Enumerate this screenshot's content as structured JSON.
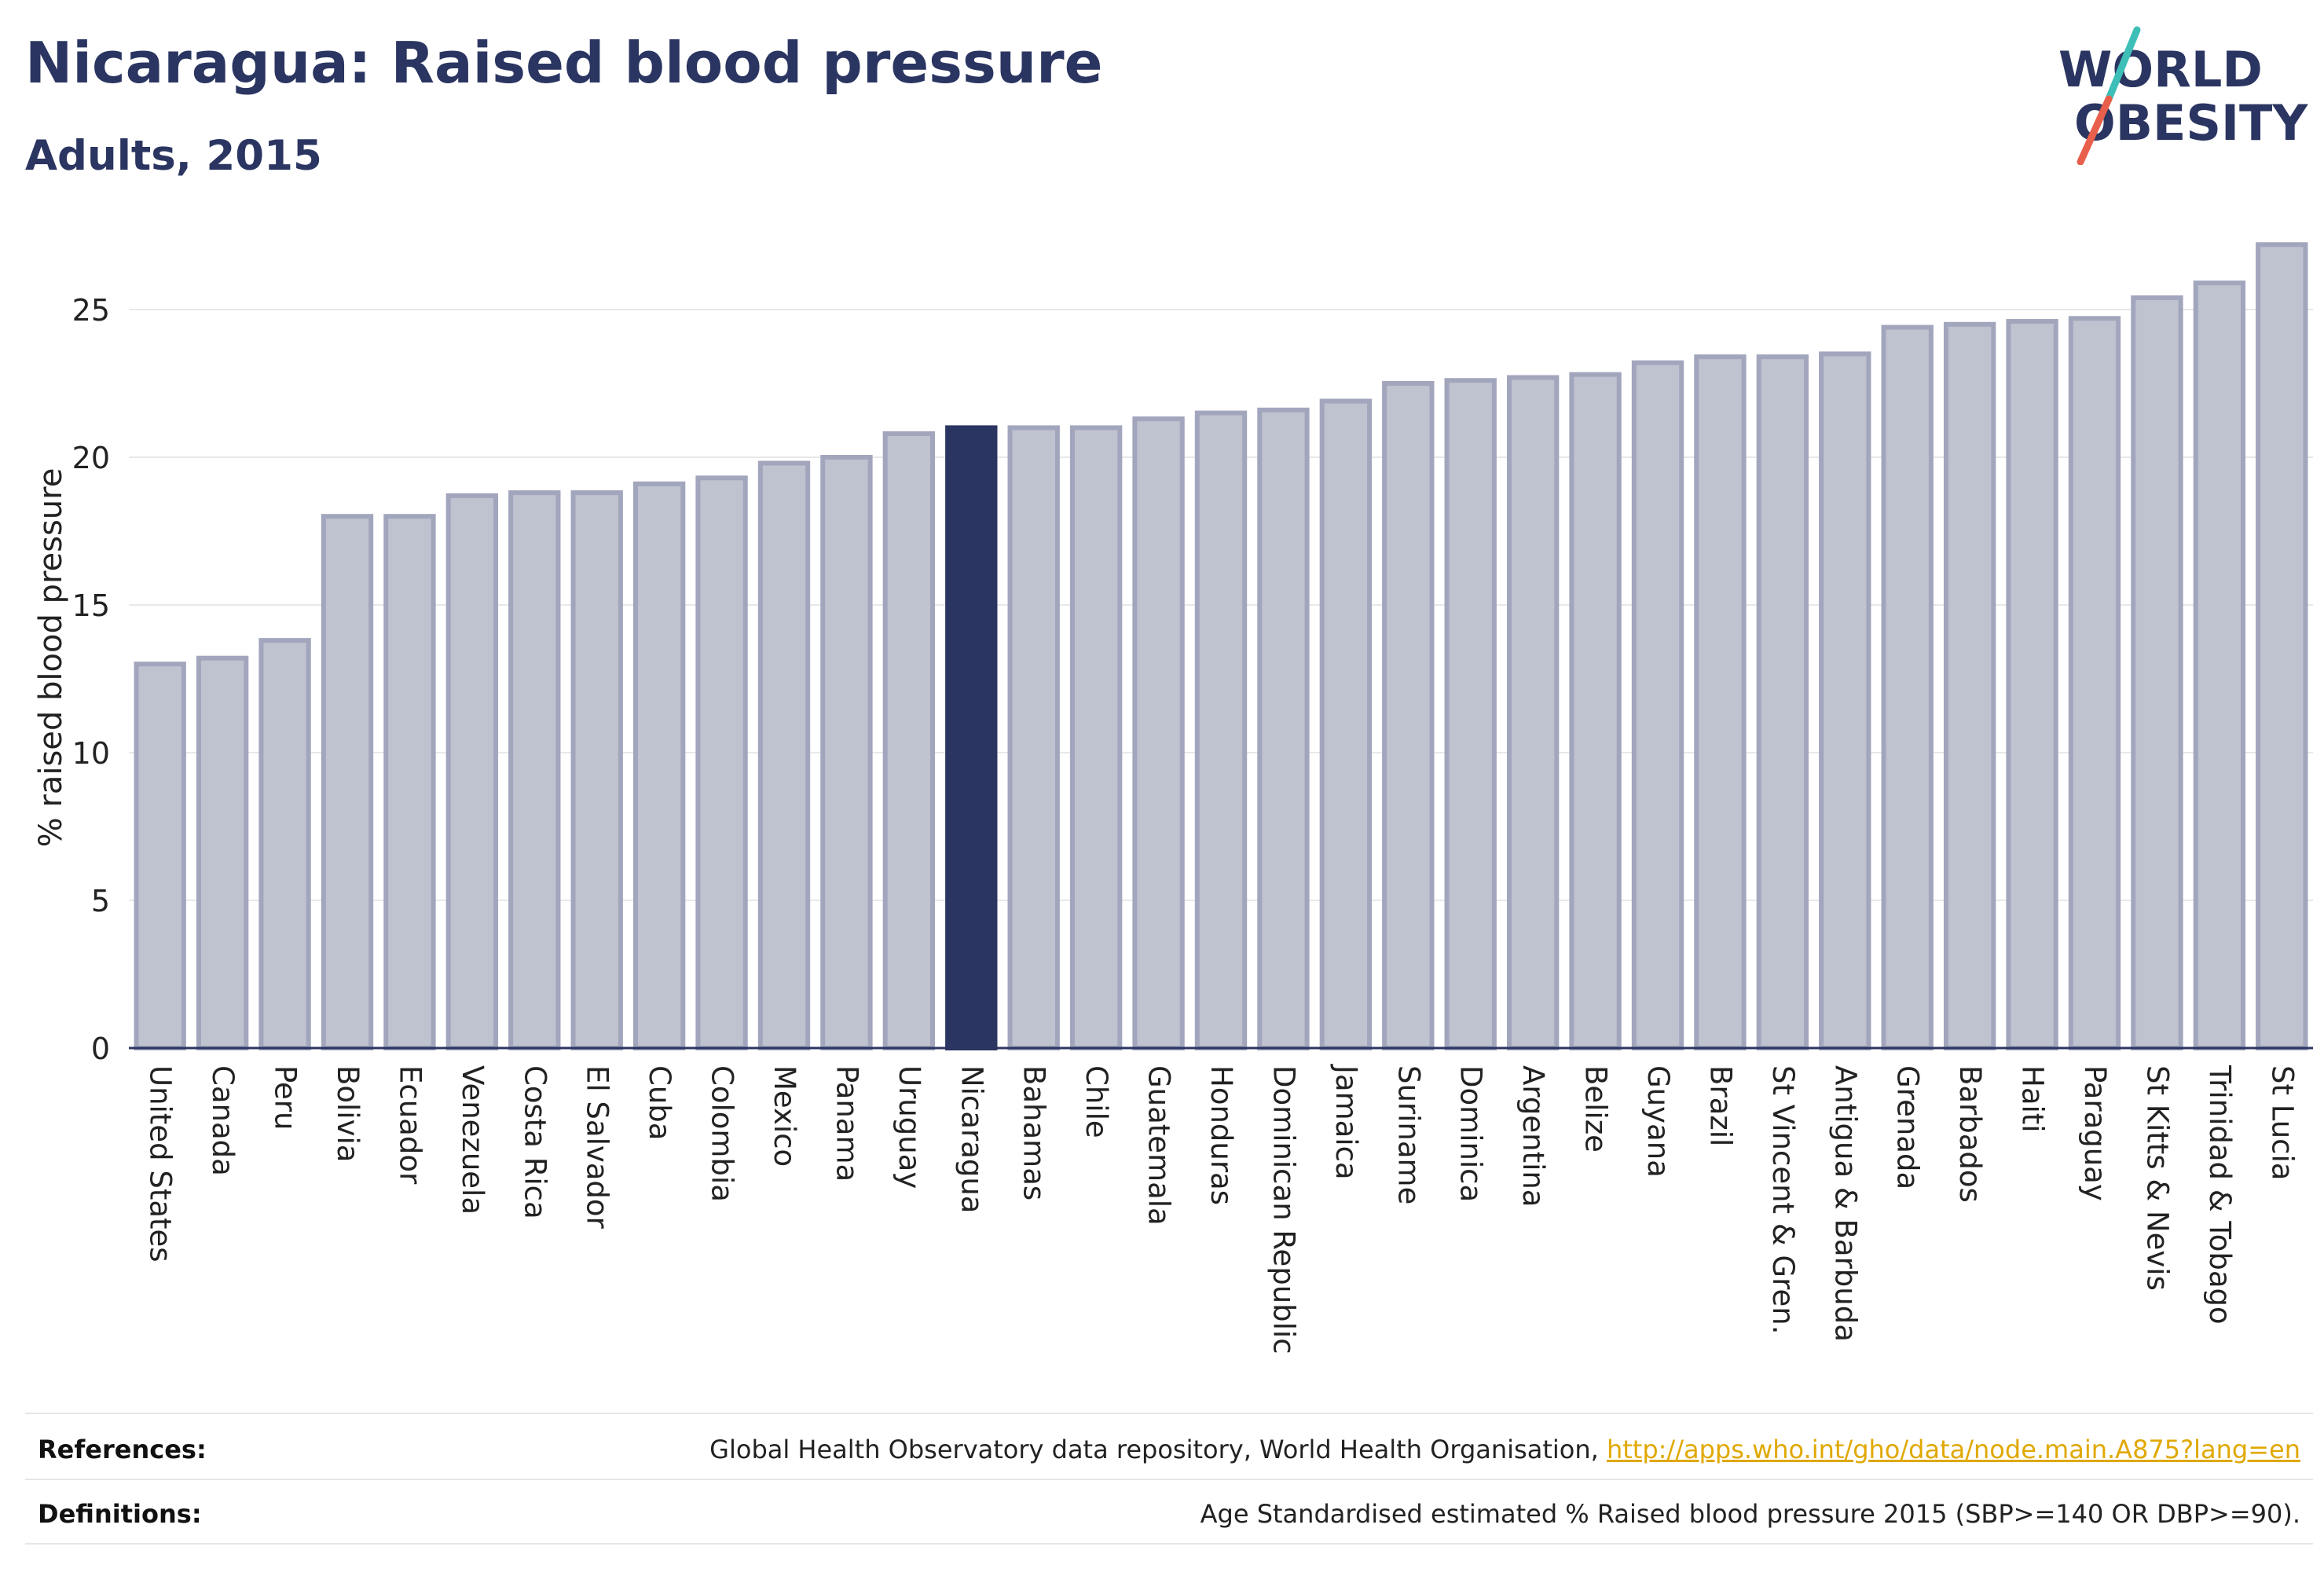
{
  "header": {
    "title": "Nicaragua: Raised blood pressure",
    "subtitle": "Adults, 2015"
  },
  "logo": {
    "line1": "WORLD",
    "line2": "OBESITY",
    "slash_colors": [
      "#3dbfb8",
      "#e8604c"
    ],
    "text_color": "#2b3561"
  },
  "colors": {
    "highlight": "#2b3561",
    "bar_fill": "#bfc2cf",
    "bar_stroke": "#a2a6bd",
    "grid": "#e8e8e8"
  },
  "chart_data": {
    "type": "bar",
    "title": "Nicaragua: Raised blood pressure",
    "subtitle": "Adults, 2015",
    "xlabel": "",
    "ylabel": "% raised blood pressure",
    "ylim": [
      0,
      27.5
    ],
    "yticks": [
      0,
      5,
      10,
      15,
      20,
      25
    ],
    "grid": true,
    "highlight": "Nicaragua",
    "categories": [
      "United States",
      "Canada",
      "Peru",
      "Bolivia",
      "Ecuador",
      "Venezuela",
      "Costa Rica",
      "El Salvador",
      "Cuba",
      "Colombia",
      "Mexico",
      "Panama",
      "Uruguay",
      "Nicaragua",
      "Bahamas",
      "Chile",
      "Guatemala",
      "Honduras",
      "Dominican Republic",
      "Jamaica",
      "Suriname",
      "Dominica",
      "Argentina",
      "Belize",
      "Guyana",
      "Brazil",
      "St Vincent & Gren.",
      "Antigua & Barbuda",
      "Grenada",
      "Barbados",
      "Haiti",
      "Paraguay",
      "St Kitts & Nevis",
      "Trinidad & Tobago",
      "St Lucia"
    ],
    "values": [
      13.0,
      13.2,
      13.8,
      18.0,
      18.0,
      18.7,
      18.8,
      18.8,
      19.1,
      19.3,
      19.8,
      20.0,
      20.8,
      21.0,
      21.0,
      21.0,
      21.3,
      21.5,
      21.6,
      21.9,
      22.5,
      22.6,
      22.7,
      22.8,
      23.2,
      23.4,
      23.4,
      23.5,
      24.4,
      24.5,
      24.6,
      24.7,
      25.4,
      25.9,
      27.2
    ]
  },
  "footer": {
    "references_label": "References:",
    "references_text": "Global Health Observatory data repository, World Health Organisation, ",
    "references_link": "http://apps.who.int/gho/data/node.main.A875?lang=en",
    "definitions_label": "Definitions:",
    "definitions_text": "Age Standardised estimated % Raised blood pressure 2015 (SBP>=140 OR DBP>=90)."
  }
}
